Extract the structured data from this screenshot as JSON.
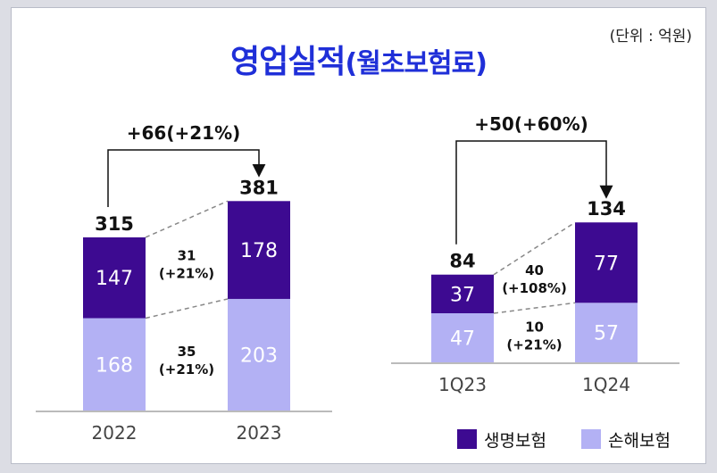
{
  "unit_label": "(단위 : 억원)",
  "title_main": "영업실적",
  "title_sub": "(월초보험료)",
  "colors": {
    "life": "#3d0a91",
    "nonlife": "#b3b1f4",
    "title": "#1f2fd8",
    "dash": "#888888"
  },
  "chart_data": [
    {
      "type": "bar",
      "stacked": true,
      "title": "영업실적(월초보험료)",
      "categories": [
        "2022",
        "2023"
      ],
      "series": [
        {
          "name": "생명보험",
          "values": [
            147,
            178
          ]
        },
        {
          "name": "손해보험",
          "values": [
            168,
            203
          ]
        }
      ],
      "totals": [
        315,
        381
      ],
      "growth_total": "+66(+21%)",
      "growth_life": [
        "31",
        "(+21%)"
      ],
      "growth_nonlife": [
        "35",
        "(+21%)"
      ]
    },
    {
      "type": "bar",
      "stacked": true,
      "categories": [
        "1Q23",
        "1Q24"
      ],
      "series": [
        {
          "name": "생명보험",
          "values": [
            37,
            77
          ]
        },
        {
          "name": "손해보험",
          "values": [
            47,
            57
          ]
        }
      ],
      "totals": [
        84,
        134
      ],
      "growth_total": "+50(+60%)",
      "growth_life": [
        "40",
        "(+108%)"
      ],
      "growth_nonlife": [
        "10",
        "(+21%)"
      ]
    }
  ],
  "legend": [
    {
      "name": "생명보험",
      "color": "#3d0a91"
    },
    {
      "name": "손해보험",
      "color": "#b3b1f4"
    }
  ]
}
